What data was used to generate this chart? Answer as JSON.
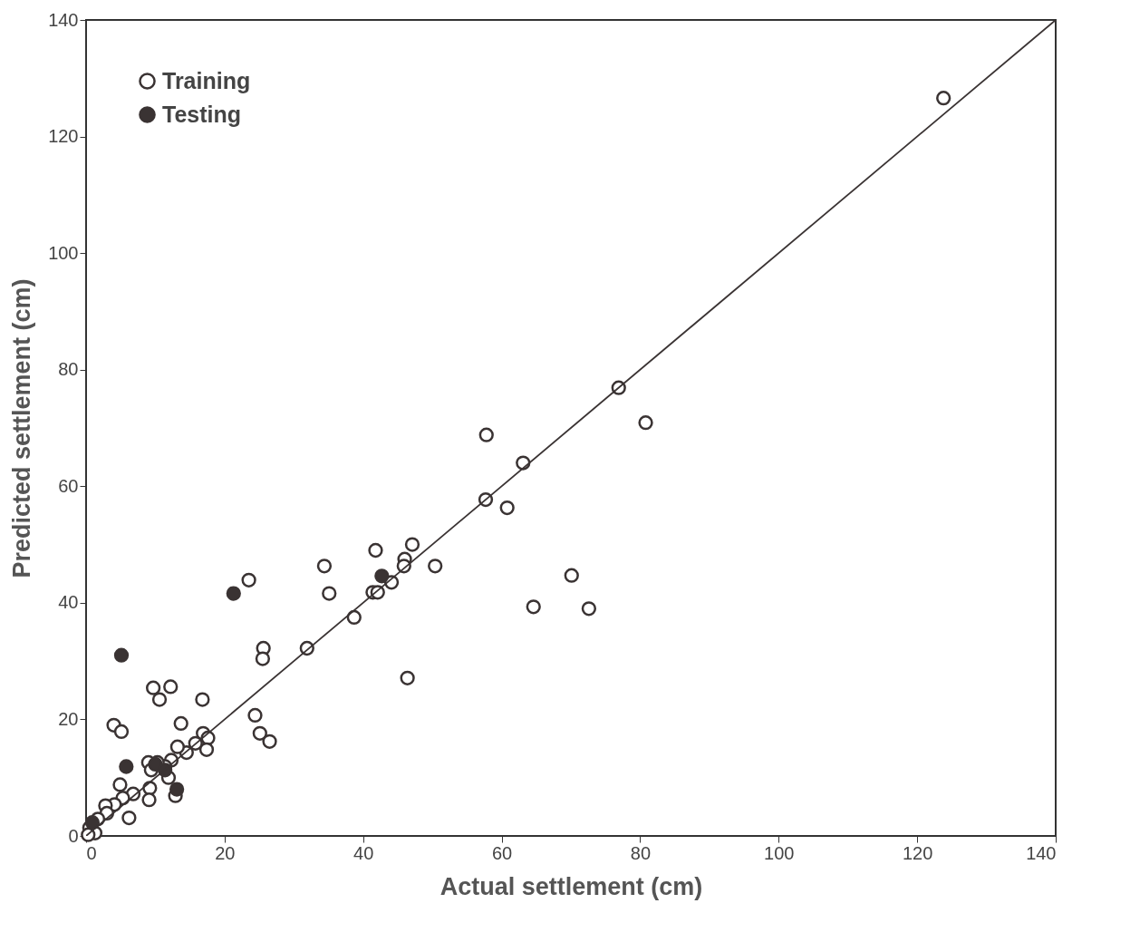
{
  "chart_data": {
    "type": "scatter",
    "xlabel": "Actual settlement (cm)",
    "ylabel": "Predicted settlement (cm)",
    "xlim": [
      0,
      140
    ],
    "ylim": [
      0,
      140
    ],
    "xticks": [
      0,
      20,
      40,
      60,
      80,
      100,
      120,
      140
    ],
    "yticks": [
      0,
      20,
      40,
      60,
      80,
      100,
      120,
      140
    ],
    "grid": false,
    "legend": "top left",
    "marker": "circle",
    "series": [
      {
        "name": "Training",
        "color": "#3a3333",
        "x": [
          123.8,
          76.9,
          80.8,
          57.8,
          63.1,
          57.7,
          60.8,
          41.8,
          47.1,
          46.0,
          45.9,
          50.4,
          34.4,
          23.5,
          44.1,
          41.4,
          42.1,
          35.1,
          38.7,
          70.1,
          64.6,
          72.6,
          31.9,
          25.6,
          25.5,
          46.4,
          16.8,
          9.7,
          12.2,
          10.6,
          4.0,
          5.1,
          13.7,
          24.4,
          25.1,
          26.5,
          16.9,
          17.6,
          17.4,
          15.8,
          14.5,
          13.2,
          12.3,
          11.4,
          9.0,
          10.3,
          9.4,
          4.9,
          9.2,
          9.1,
          12.9,
          6.8,
          5.3,
          4.1,
          2.8,
          3.0,
          6.2,
          1.7,
          0.5,
          1.3,
          0.3,
          11.9
        ],
        "values": [
          126.6,
          76.9,
          70.9,
          68.8,
          64.0,
          57.7,
          56.3,
          49.0,
          50.0,
          47.5,
          46.3,
          46.3,
          46.3,
          43.9,
          43.5,
          41.8,
          41.8,
          41.6,
          37.5,
          44.7,
          39.3,
          39.0,
          32.2,
          32.2,
          30.4,
          27.1,
          23.4,
          25.4,
          25.6,
          23.4,
          19.0,
          17.9,
          19.3,
          20.7,
          17.6,
          16.2,
          17.6,
          16.8,
          14.8,
          15.9,
          14.3,
          15.3,
          13.0,
          11.9,
          12.6,
          12.6,
          11.3,
          8.8,
          8.2,
          6.2,
          6.9,
          7.2,
          6.5,
          5.4,
          5.2,
          3.9,
          3.1,
          2.9,
          1.4,
          0.5,
          0.2,
          10.0
        ]
      },
      {
        "name": "Testing",
        "color": "#3a3333",
        "x": [
          0.9,
          5.1,
          21.3,
          42.7,
          5.8,
          10.0,
          11.4,
          13.1
        ],
        "values": [
          2.3,
          31.0,
          41.6,
          44.6,
          11.9,
          12.3,
          11.3,
          8.0
        ]
      },
      {
        "type": "line",
        "marker": "none",
        "color": "#3a3333",
        "x": [
          0,
          140
        ],
        "values": [
          0,
          140
        ]
      }
    ]
  }
}
